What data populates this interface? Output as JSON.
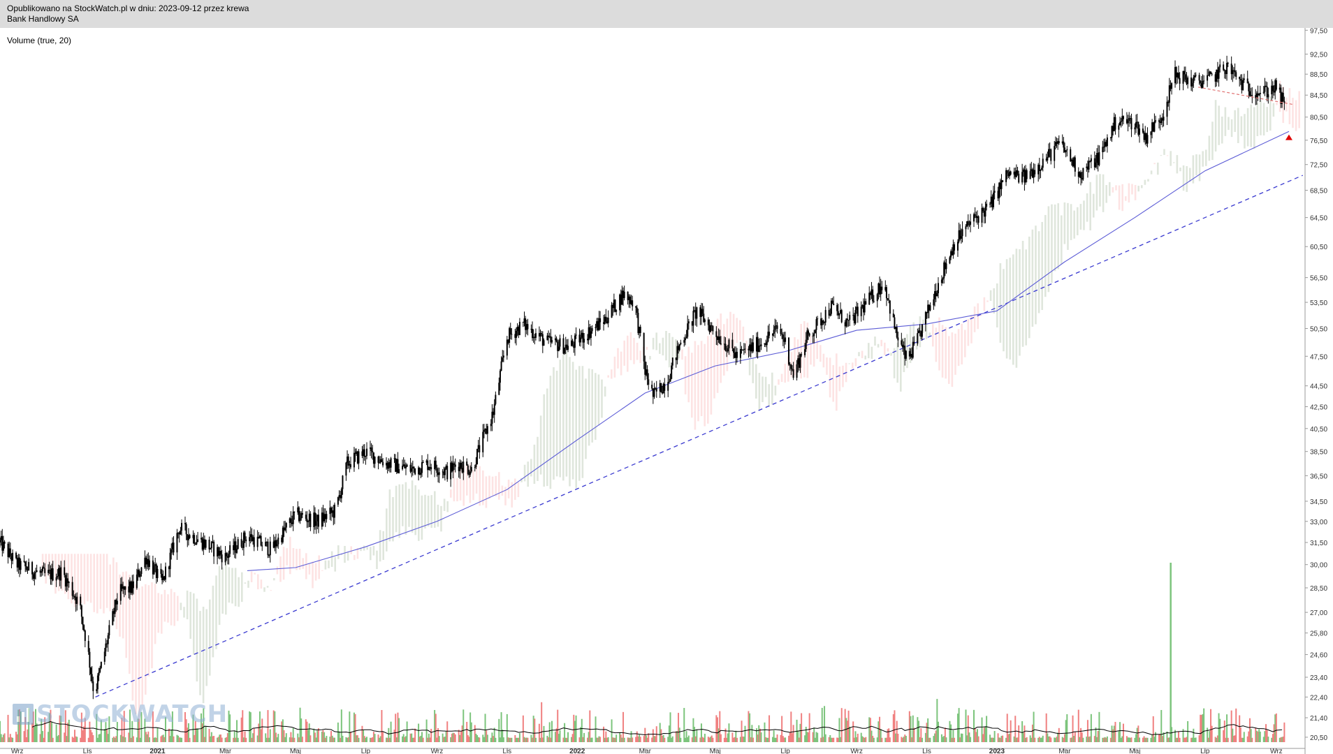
{
  "header": {
    "published": "Opublikowano na StockWatch.pl w dniu: 2023-09-12 przez krewa",
    "instrument": "Bank Handlowy SA"
  },
  "indicator_label": "Volume (true, 20)",
  "watermark": "STOCKWATCH",
  "colors": {
    "candle": "#000000",
    "cloud_bull": "#dfe6dc",
    "cloud_bear": "#fde3e3",
    "sma": "#5b5bd6",
    "trendline": "#3a3ad0",
    "resistance": "#e07070",
    "vol_up": "#7cc47c",
    "vol_down": "#f08080",
    "vol_avg": "#000000",
    "marker": "#e00000",
    "grid_axis": "#999999"
  },
  "chart_data": {
    "type": "candlestick",
    "title": "",
    "xlabel": "",
    "ylabel": "",
    "y_scale": "log",
    "ylim": [
      20.0,
      98.0
    ],
    "x_range": [
      "2020-08-17",
      "2023-09-26"
    ],
    "y_ticks": [
      "97,50",
      "92,50",
      "88,50",
      "84,50",
      "80,50",
      "76,50",
      "72,50",
      "68,50",
      "64,50",
      "60,50",
      "56,50",
      "53,50",
      "50,50",
      "47,50",
      "44,50",
      "42,50",
      "40,50",
      "38,50",
      "36,50",
      "34,50",
      "33,00",
      "31,50",
      "30,00",
      "28,50",
      "27,00",
      "25,80",
      "24,60",
      "23,40",
      "22,40",
      "21,40",
      "20,50"
    ],
    "x_ticks": [
      {
        "label": "Wrz",
        "date": "2020-09-01"
      },
      {
        "label": "Lis",
        "date": "2020-11-01"
      },
      {
        "label": "2021",
        "date": "2021-01-01"
      },
      {
        "label": "Mar",
        "date": "2021-03-01"
      },
      {
        "label": "Maj",
        "date": "2021-05-01"
      },
      {
        "label": "Lip",
        "date": "2021-07-01"
      },
      {
        "label": "Wrz",
        "date": "2021-09-01"
      },
      {
        "label": "Lis",
        "date": "2021-11-01"
      },
      {
        "label": "2022",
        "date": "2022-01-01"
      },
      {
        "label": "Mar",
        "date": "2022-03-01"
      },
      {
        "label": "Maj",
        "date": "2022-05-01"
      },
      {
        "label": "Lip",
        "date": "2022-07-01"
      },
      {
        "label": "Wrz",
        "date": "2022-09-01"
      },
      {
        "label": "Lis",
        "date": "2022-11-01"
      },
      {
        "label": "2023",
        "date": "2023-01-01"
      },
      {
        "label": "Mar",
        "date": "2023-03-01"
      },
      {
        "label": "Maj",
        "date": "2023-05-01"
      },
      {
        "label": "Lip",
        "date": "2023-07-01"
      },
      {
        "label": "Wrz",
        "date": "2023-09-01"
      }
    ],
    "price_path": [
      {
        "date": "2020-08-17",
        "close": 31.5
      },
      {
        "date": "2020-09-01",
        "close": 30.0
      },
      {
        "date": "2020-09-25",
        "close": 29.3
      },
      {
        "date": "2020-10-10",
        "close": 29.5
      },
      {
        "date": "2020-10-25",
        "close": 27.5
      },
      {
        "date": "2020-11-01",
        "close": 25.0
      },
      {
        "date": "2020-11-07",
        "close": 22.5
      },
      {
        "date": "2020-11-15",
        "close": 24.5
      },
      {
        "date": "2020-11-28",
        "close": 28.2
      },
      {
        "date": "2020-12-10",
        "close": 28.5
      },
      {
        "date": "2020-12-22",
        "close": 30.5
      },
      {
        "date": "2021-01-05",
        "close": 28.8
      },
      {
        "date": "2021-01-20",
        "close": 32.5
      },
      {
        "date": "2021-02-10",
        "close": 31.5
      },
      {
        "date": "2021-03-01",
        "close": 30.5
      },
      {
        "date": "2021-03-20",
        "close": 32.0
      },
      {
        "date": "2021-04-10",
        "close": 31.0
      },
      {
        "date": "2021-05-01",
        "close": 33.5
      },
      {
        "date": "2021-05-20",
        "close": 33.0
      },
      {
        "date": "2021-06-05",
        "close": 33.8
      },
      {
        "date": "2021-06-15",
        "close": 37.5
      },
      {
        "date": "2021-07-01",
        "close": 38.5
      },
      {
        "date": "2021-07-20",
        "close": 37.5
      },
      {
        "date": "2021-08-10",
        "close": 37.0
      },
      {
        "date": "2021-08-25",
        "close": 37.5
      },
      {
        "date": "2021-09-10",
        "close": 36.8
      },
      {
        "date": "2021-09-20",
        "close": 37.5
      },
      {
        "date": "2021-10-01",
        "close": 37.0
      },
      {
        "date": "2021-10-20",
        "close": 42.0
      },
      {
        "date": "2021-11-01",
        "close": 49.5
      },
      {
        "date": "2021-11-15",
        "close": 51.0
      },
      {
        "date": "2021-12-05",
        "close": 49.0
      },
      {
        "date": "2021-12-25",
        "close": 48.5
      },
      {
        "date": "2022-01-10",
        "close": 50.0
      },
      {
        "date": "2022-01-25",
        "close": 51.5
      },
      {
        "date": "2022-02-10",
        "close": 54.5
      },
      {
        "date": "2022-02-20",
        "close": 53.5
      },
      {
        "date": "2022-03-01",
        "close": 46.0
      },
      {
        "date": "2022-03-08",
        "close": 43.5
      },
      {
        "date": "2022-03-20",
        "close": 45.0
      },
      {
        "date": "2022-04-01",
        "close": 49.0
      },
      {
        "date": "2022-04-15",
        "close": 52.5
      },
      {
        "date": "2022-05-05",
        "close": 49.5
      },
      {
        "date": "2022-05-20",
        "close": 47.5
      },
      {
        "date": "2022-06-10",
        "close": 49.0
      },
      {
        "date": "2022-06-25",
        "close": 50.5
      },
      {
        "date": "2022-07-01",
        "close": 49.0
      },
      {
        "date": "2022-07-08",
        "close": 45.5
      },
      {
        "date": "2022-07-20",
        "close": 49.5
      },
      {
        "date": "2022-08-10",
        "close": 53.0
      },
      {
        "date": "2022-08-25",
        "close": 51.0
      },
      {
        "date": "2022-09-10",
        "close": 53.5
      },
      {
        "date": "2022-09-25",
        "close": 56.0
      },
      {
        "date": "2022-10-05",
        "close": 50.0
      },
      {
        "date": "2022-10-15",
        "close": 47.0
      },
      {
        "date": "2022-10-25",
        "close": 49.5
      },
      {
        "date": "2022-11-10",
        "close": 55.5
      },
      {
        "date": "2022-11-25",
        "close": 61.0
      },
      {
        "date": "2022-12-10",
        "close": 64.0
      },
      {
        "date": "2022-12-25",
        "close": 66.0
      },
      {
        "date": "2023-01-10",
        "close": 71.0
      },
      {
        "date": "2023-01-25",
        "close": 70.5
      },
      {
        "date": "2023-02-10",
        "close": 73.0
      },
      {
        "date": "2023-02-25",
        "close": 76.0
      },
      {
        "date": "2023-03-15",
        "close": 71.0
      },
      {
        "date": "2023-04-01",
        "close": 74.0
      },
      {
        "date": "2023-04-15",
        "close": 80.0
      },
      {
        "date": "2023-05-01",
        "close": 79.5
      },
      {
        "date": "2023-05-10",
        "close": 77.0
      },
      {
        "date": "2023-05-25",
        "close": 81.0
      },
      {
        "date": "2023-06-05",
        "close": 88.5
      },
      {
        "date": "2023-06-20",
        "close": 87.0
      },
      {
        "date": "2023-07-05",
        "close": 87.5
      },
      {
        "date": "2023-07-20",
        "close": 90.0
      },
      {
        "date": "2023-08-05",
        "close": 86.0
      },
      {
        "date": "2023-08-20",
        "close": 85.0
      },
      {
        "date": "2023-09-01",
        "close": 86.0
      },
      {
        "date": "2023-09-08",
        "close": 82.5
      }
    ],
    "sma": [
      {
        "date": "2021-03-20",
        "value": 29.6
      },
      {
        "date": "2021-05-01",
        "value": 29.8
      },
      {
        "date": "2021-07-01",
        "value": 31.2
      },
      {
        "date": "2021-09-01",
        "value": 33.0
      },
      {
        "date": "2021-11-01",
        "value": 35.4
      },
      {
        "date": "2022-01-01",
        "value": 39.5
      },
      {
        "date": "2022-03-01",
        "value": 43.8
      },
      {
        "date": "2022-05-01",
        "value": 46.5
      },
      {
        "date": "2022-07-01",
        "value": 48.0
      },
      {
        "date": "2022-09-01",
        "value": 50.3
      },
      {
        "date": "2022-11-01",
        "value": 51.0
      },
      {
        "date": "2023-01-01",
        "value": 52.5
      },
      {
        "date": "2023-03-01",
        "value": 58.5
      },
      {
        "date": "2023-05-01",
        "value": 64.5
      },
      {
        "date": "2023-07-01",
        "value": 71.5
      },
      {
        "date": "2023-09-12",
        "value": 78.0
      }
    ],
    "trendline": [
      {
        "date": "2020-11-08",
        "value": 22.4
      },
      {
        "date": "2023-09-24",
        "value": 70.8
      }
    ],
    "resistance_line": [
      {
        "date": "2023-06-25",
        "value": 86.0
      },
      {
        "date": "2023-09-15",
        "value": 82.8
      }
    ],
    "signal_marker": {
      "date": "2023-09-12",
      "value": 77.0
    },
    "volume_spike": {
      "date": "2023-06-01",
      "relative": 1.0
    }
  }
}
